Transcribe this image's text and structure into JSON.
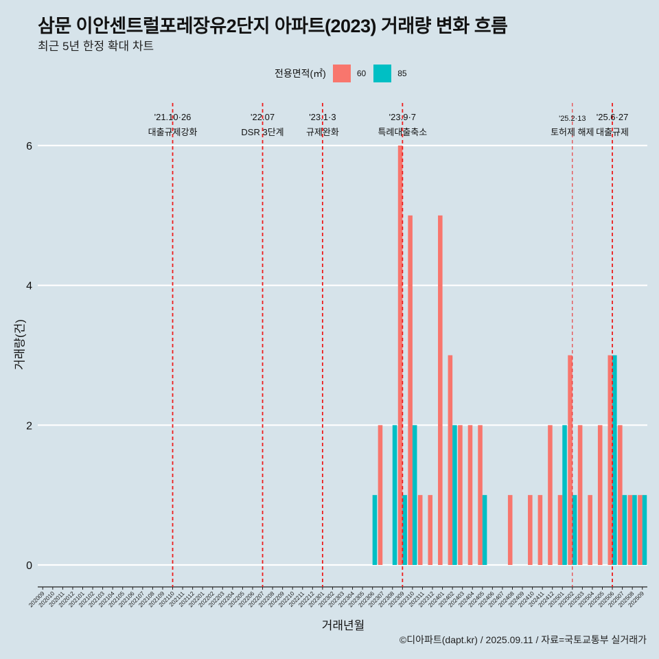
{
  "title": "삼문 이안센트럴포레장유2단지 아파트(2023) 거래량 변화 흐름",
  "subtitle": "최근 5년 한정 확대 차트",
  "caption": "©디아파트(dapt.kr) / 2025.09.11 / 자료=국토교통부 실거래가",
  "legend": {
    "title": "전용면적(㎡)",
    "items": [
      {
        "label": "60",
        "color": "#F8766D"
      },
      {
        "label": "85",
        "color": "#00BFC4"
      }
    ]
  },
  "chart_data": {
    "type": "bar",
    "xlabel": "거래년월",
    "ylabel": "거래량(건)",
    "ylim": [
      0,
      6
    ],
    "yticks": [
      0,
      2,
      4,
      6
    ],
    "grid": "horizontal",
    "legend_position": "top",
    "categories": [
      "202009",
      "202010",
      "202011",
      "202012",
      "202101",
      "202102",
      "202103",
      "202104",
      "202105",
      "202106",
      "202107",
      "202108",
      "202109",
      "202110",
      "202111",
      "202112",
      "202201",
      "202202",
      "202203",
      "202204",
      "202205",
      "202206",
      "202207",
      "202208",
      "202209",
      "202210",
      "202211",
      "202212",
      "202301",
      "202302",
      "202303",
      "202304",
      "202305",
      "202306",
      "202307",
      "202308",
      "202309",
      "202310",
      "202311",
      "202312",
      "202401",
      "202402",
      "202403",
      "202404",
      "202405",
      "202406",
      "202407",
      "202408",
      "202409",
      "202410",
      "202411",
      "202412",
      "202501",
      "202502",
      "202503",
      "202504",
      "202505",
      "202506",
      "202507",
      "202508",
      "202509"
    ],
    "series": [
      {
        "name": "60",
        "color": "#F8766D",
        "values": [
          0,
          0,
          0,
          0,
          0,
          0,
          0,
          0,
          0,
          0,
          0,
          0,
          0,
          0,
          0,
          0,
          0,
          0,
          0,
          0,
          0,
          0,
          0,
          0,
          0,
          0,
          0,
          0,
          0,
          0,
          0,
          0,
          0,
          0,
          2,
          0,
          6,
          5,
          1,
          1,
          5,
          3,
          2,
          2,
          2,
          0,
          0,
          1,
          0,
          1,
          1,
          2,
          1,
          3,
          2,
          1,
          2,
          3,
          2,
          1,
          1
        ]
      },
      {
        "name": "85",
        "color": "#00BFC4",
        "values": [
          0,
          0,
          0,
          0,
          0,
          0,
          0,
          0,
          0,
          0,
          0,
          0,
          0,
          0,
          0,
          0,
          0,
          0,
          0,
          0,
          0,
          0,
          0,
          0,
          0,
          0,
          0,
          0,
          0,
          0,
          0,
          0,
          0,
          1,
          0,
          2,
          1,
          2,
          0,
          0,
          0,
          2,
          0,
          0,
          1,
          0,
          0,
          0,
          0,
          0,
          0,
          0,
          2,
          1,
          0,
          0,
          0,
          3,
          1,
          1,
          1
        ]
      }
    ],
    "annotations": [
      {
        "date": "'21.10·26",
        "text": "대출규제강화",
        "x": "202110",
        "style": "dashed"
      },
      {
        "date": "'22.07",
        "text": "DSR 3단계",
        "x": "202207",
        "style": "dashed"
      },
      {
        "date": "'23.1·3",
        "text": "규제완화",
        "x": "202301",
        "style": "dashed"
      },
      {
        "date": "'23.9·7",
        "text": "특례대출축소",
        "x": "202309",
        "style": "dashed"
      },
      {
        "date": "'25.2·13",
        "text": "토허제 해제",
        "x": "202502",
        "style": "thin-dashed"
      },
      {
        "date": "'25.6·27",
        "text": "대출규제",
        "x": "202506",
        "style": "dashed"
      }
    ]
  }
}
